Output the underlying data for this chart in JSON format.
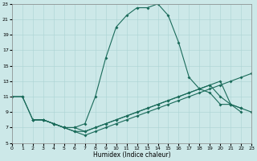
{
  "bg_color": "#cce8e8",
  "grid_color": "#aad4d4",
  "line_color": "#1a6b5a",
  "xlabel": "Humidex (Indice chaleur)",
  "xlim": [
    0,
    23
  ],
  "ylim": [
    5,
    23
  ],
  "xticks": [
    0,
    1,
    2,
    3,
    4,
    5,
    6,
    7,
    8,
    9,
    10,
    11,
    12,
    13,
    14,
    15,
    16,
    17,
    18,
    19,
    20,
    21,
    22,
    23
  ],
  "yticks": [
    5,
    7,
    9,
    11,
    13,
    15,
    17,
    19,
    21,
    23
  ],
  "line1_x": [
    0,
    1,
    2,
    3,
    4,
    5,
    6,
    7,
    8,
    9,
    10,
    11,
    12,
    13,
    14,
    15,
    16,
    17,
    18,
    19,
    20,
    21,
    22
  ],
  "line1_y": [
    11,
    11,
    8,
    8,
    7.5,
    7,
    7,
    7.5,
    11,
    16,
    20,
    21.5,
    22.5,
    22.5,
    23,
    21.5,
    18,
    13.5,
    12,
    11.5,
    10,
    10,
    9
  ],
  "line2_x": [
    0,
    1,
    2,
    3,
    4,
    5,
    6,
    7,
    8,
    9,
    10,
    11,
    12,
    13,
    14,
    15,
    16,
    17,
    18,
    19,
    20,
    21,
    22
  ],
  "line2_y": [
    11,
    11,
    8,
    8,
    7.5,
    7,
    7,
    6.5,
    7,
    7.5,
    8,
    8.5,
    9,
    9.5,
    10,
    10.5,
    11,
    11.5,
    12,
    12.5,
    13,
    10,
    9.5
  ],
  "line3_x": [
    2,
    3,
    4,
    5,
    6,
    7,
    8,
    9,
    10,
    11,
    12,
    13,
    14,
    15,
    16,
    17,
    18,
    19,
    20,
    21,
    22,
    23
  ],
  "line3_y": [
    8,
    8,
    7.5,
    7,
    6.5,
    6.5,
    7,
    7.5,
    8,
    8.5,
    9,
    9.5,
    10,
    10.5,
    11,
    11.5,
    12,
    12.5,
    11,
    10,
    9.5,
    9
  ],
  "line4_x": [
    2,
    3,
    4,
    5,
    6,
    7,
    8,
    9,
    10,
    11,
    12,
    13,
    14,
    15,
    16,
    17,
    18,
    19,
    20,
    21,
    22,
    23
  ],
  "line4_y": [
    8,
    8,
    7.5,
    7,
    6.5,
    6,
    6.5,
    7,
    7.5,
    8,
    8.5,
    9,
    9.5,
    10,
    10.5,
    11,
    11.5,
    12,
    12.5,
    13,
    13.5,
    14
  ]
}
